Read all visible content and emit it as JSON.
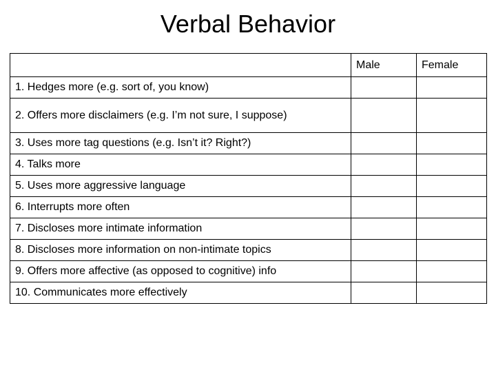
{
  "slide": {
    "title": "Verbal Behavior"
  },
  "table": {
    "columns": [
      "",
      "Male",
      "Female"
    ],
    "rows": [
      {
        "label": "1. Hedges more (e.g. sort of, you know)",
        "male": "",
        "female": ""
      },
      {
        "label": "2. Offers more disclaimers (e.g. I’m not sure, I suppose)",
        "male": "",
        "female": ""
      },
      {
        "label": "3. Uses more tag questions (e.g. Isn’t it? Right?)",
        "male": "",
        "female": ""
      },
      {
        "label": "4. Talks more",
        "male": "",
        "female": ""
      },
      {
        "label": "5. Uses more aggressive language",
        "male": "",
        "female": ""
      },
      {
        "label": "6. Interrupts more often",
        "male": "",
        "female": ""
      },
      {
        "label": "7. Discloses more intimate information",
        "male": "",
        "female": ""
      },
      {
        "label": "8. Discloses more information on non-intimate topics",
        "male": "",
        "female": ""
      },
      {
        "label": "9. Offers more affective (as opposed to cognitive) info",
        "male": "",
        "female": ""
      },
      {
        "label": "10. Communicates more effectively",
        "male": "",
        "female": ""
      }
    ]
  }
}
